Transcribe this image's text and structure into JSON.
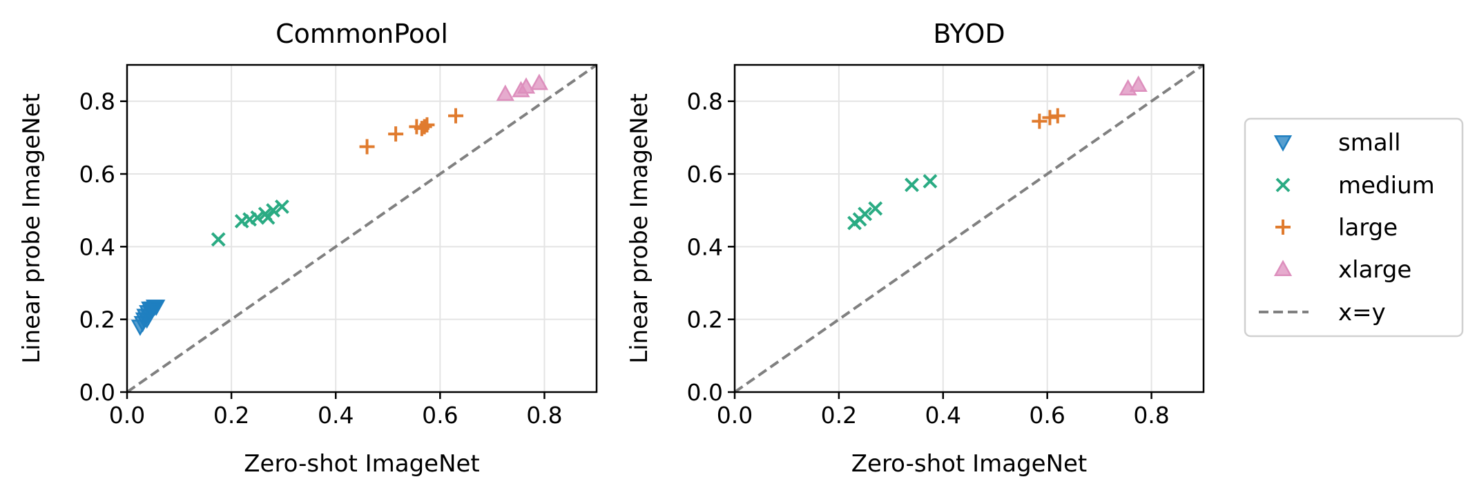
{
  "legend": {
    "placement": "right",
    "entries": [
      {
        "label": "small",
        "marker": "triangle-down",
        "color": "#1f7fc0"
      },
      {
        "label": "medium",
        "marker": "x",
        "color": "#2aab83"
      },
      {
        "label": "large",
        "marker": "plus",
        "color": "#e07b2e"
      },
      {
        "label": "xlarge",
        "marker": "triangle-up",
        "color": "#dd8fbd"
      },
      {
        "label": "x=y",
        "marker": "dashed-line",
        "color": "#808080"
      }
    ]
  },
  "chart_data": [
    {
      "type": "scatter",
      "title": "CommonPool",
      "xlabel": "Zero-shot ImageNet",
      "ylabel": "Linear probe ImageNet",
      "xlim": [
        0,
        0.9
      ],
      "ylim": [
        0,
        0.9
      ],
      "xticks": [
        "0.0",
        "0.2",
        "0.4",
        "0.6",
        "0.8"
      ],
      "yticks": [
        "0.0",
        "0.2",
        "0.4",
        "0.6",
        "0.8"
      ],
      "grid": true,
      "reference_line": "x=y",
      "series": [
        {
          "name": "small",
          "points": [
            [
              0.025,
              0.18
            ],
            [
              0.03,
              0.19
            ],
            [
              0.033,
              0.2
            ],
            [
              0.035,
              0.21
            ],
            [
              0.038,
              0.2
            ],
            [
              0.04,
              0.22
            ],
            [
              0.042,
              0.21
            ],
            [
              0.044,
              0.23
            ],
            [
              0.046,
              0.22
            ],
            [
              0.048,
              0.23
            ],
            [
              0.05,
              0.23
            ],
            [
              0.053,
              0.235
            ],
            [
              0.056,
              0.235
            ]
          ]
        },
        {
          "name": "medium",
          "points": [
            [
              0.175,
              0.42
            ],
            [
              0.22,
              0.47
            ],
            [
              0.235,
              0.475
            ],
            [
              0.25,
              0.48
            ],
            [
              0.265,
              0.49
            ],
            [
              0.27,
              0.48
            ],
            [
              0.28,
              0.5
            ],
            [
              0.297,
              0.51
            ]
          ]
        },
        {
          "name": "large",
          "points": [
            [
              0.46,
              0.675
            ],
            [
              0.515,
              0.71
            ],
            [
              0.555,
              0.73
            ],
            [
              0.565,
              0.725
            ],
            [
              0.57,
              0.73
            ],
            [
              0.575,
              0.735
            ],
            [
              0.63,
              0.76
            ]
          ]
        },
        {
          "name": "xlarge",
          "points": [
            [
              0.725,
              0.82
            ],
            [
              0.755,
              0.83
            ],
            [
              0.765,
              0.84
            ],
            [
              0.79,
              0.85
            ]
          ]
        }
      ]
    },
    {
      "type": "scatter",
      "title": "BYOD",
      "xlabel": "Zero-shot ImageNet",
      "ylabel": "Linear probe ImageNet",
      "xlim": [
        0,
        0.9
      ],
      "ylim": [
        0,
        0.9
      ],
      "xticks": [
        "0.0",
        "0.2",
        "0.4",
        "0.6",
        "0.8"
      ],
      "yticks": [
        "0.0",
        "0.2",
        "0.4",
        "0.6",
        "0.8"
      ],
      "grid": true,
      "reference_line": "x=y",
      "series": [
        {
          "name": "small",
          "points": []
        },
        {
          "name": "medium",
          "points": [
            [
              0.23,
              0.465
            ],
            [
              0.24,
              0.475
            ],
            [
              0.25,
              0.49
            ],
            [
              0.27,
              0.505
            ],
            [
              0.34,
              0.57
            ],
            [
              0.375,
              0.58
            ]
          ]
        },
        {
          "name": "large",
          "points": [
            [
              0.585,
              0.745
            ],
            [
              0.605,
              0.755
            ],
            [
              0.62,
              0.76
            ]
          ]
        },
        {
          "name": "xlarge",
          "points": [
            [
              0.755,
              0.835
            ],
            [
              0.775,
              0.845
            ]
          ]
        }
      ]
    }
  ]
}
